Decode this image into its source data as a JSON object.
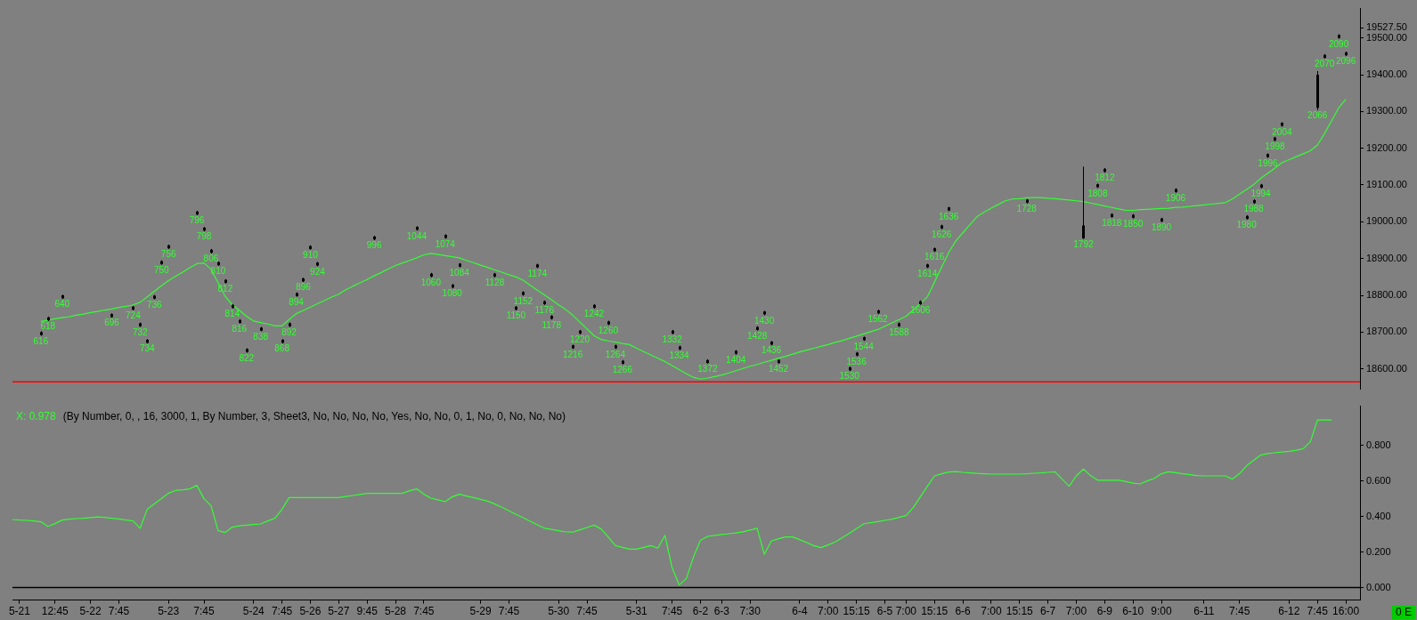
{
  "chart_data": [
    {
      "type": "candlestick",
      "ylim": [
        18545,
        19580
      ],
      "grid": false,
      "legend": false,
      "tick_labels": "y",
      "categories": [
        null,
        null,
        null,
        null,
        null,
        null,
        null,
        null,
        null,
        null,
        null,
        null,
        null,
        null,
        null,
        null,
        null,
        null,
        null,
        null,
        null,
        null,
        null,
        null,
        null,
        null,
        null,
        null,
        null,
        null,
        null,
        null,
        null,
        null,
        null,
        null,
        null,
        null,
        null,
        null,
        null,
        null,
        null,
        null,
        null,
        null,
        null,
        null,
        null,
        null,
        null,
        null,
        null,
        null,
        null,
        null,
        null,
        null,
        null,
        null,
        null,
        null,
        null,
        null,
        null,
        null,
        null,
        null,
        null,
        null,
        null,
        null,
        null,
        null,
        null,
        null,
        null,
        null,
        null,
        null,
        null,
        null,
        null,
        null,
        null,
        null,
        null,
        null,
        null,
        null,
        null,
        null,
        null,
        null,
        null,
        null,
        null,
        null,
        null,
        null,
        null,
        null,
        null,
        null,
        null,
        null,
        null,
        null,
        null,
        null,
        null,
        null,
        null,
        null,
        null,
        null,
        null,
        null,
        null,
        null,
        null,
        null,
        null,
        null,
        null,
        null,
        null,
        null,
        null,
        null,
        null,
        null,
        null,
        null,
        null,
        null,
        null,
        null,
        null,
        null,
        null,
        null,
        null,
        null,
        null,
        null,
        null,
        null,
        null,
        null,
        null,
        null,
        null,
        null,
        null,
        null,
        null,
        null,
        null,
        null,
        null,
        null,
        null,
        null,
        null,
        null,
        null,
        null,
        null,
        null,
        null,
        null,
        null,
        null,
        null,
        null,
        null,
        null,
        null,
        null,
        null,
        null,
        null,
        null,
        null,
        null,
        null,
        null,
        null,
        null,
        null
      ],
      "yticks": [
        {
          "value": 18600,
          "label": "18600.00"
        },
        {
          "value": 18700,
          "label": "18700.00"
        },
        {
          "value": 18800,
          "label": "18800.00"
        },
        {
          "value": 18900,
          "label": "18900.00"
        },
        {
          "value": 19000,
          "label": "19000.00"
        },
        {
          "value": 19100,
          "label": "19100.00"
        },
        {
          "value": 19200,
          "label": "19200.00"
        },
        {
          "value": 19300,
          "label": "19300.00"
        },
        {
          "value": 19400,
          "label": "19400.00"
        },
        {
          "value": 19500,
          "label": "19500.00"
        },
        {
          "value": 19527.5,
          "label": "19527.50"
        }
      ],
      "ref_lines": [
        {
          "axis": "y",
          "value": 18565,
          "color": "#ff0000"
        }
      ],
      "series": [
        {
          "color": "#000000",
          "ohlc": [
            null,
            null,
            null,
            null,
            [
              18692,
              18702,
              18690,
              18700
            ],
            [
              18732,
              18742,
              18730,
              18740
            ],
            null,
            [
              18792,
              18802,
              18790,
              18800
            ],
            null,
            null,
            null,
            null,
            null,
            null,
            [
              18741,
              18751,
              18739,
              18749
            ],
            null,
            null,
            [
              18761,
              18771,
              18759,
              18769
            ],
            [
              18716,
              18726,
              18714,
              18724
            ],
            [
              18671,
              18681,
              18669,
              18679
            ],
            [
              18791,
              18801,
              18789,
              18799
            ],
            [
              18885,
              18895,
              18883,
              18893
            ],
            [
              18928,
              18938,
              18926,
              18936
            ],
            null,
            null,
            null,
            [
              19020,
              19030,
              19018,
              19028
            ],
            [
              18976,
              18986,
              18974,
              18984
            ],
            [
              18916,
              18926,
              18914,
              18924
            ],
            [
              18882,
              18892,
              18880,
              18890
            ],
            [
              18834,
              18844,
              18832,
              18842
            ],
            [
              18766,
              18776,
              18764,
              18774
            ],
            [
              18725,
              18735,
              18723,
              18733
            ],
            [
              18646,
              18656,
              18644,
              18654
            ],
            null,
            [
              18704,
              18714,
              18702,
              18712
            ],
            null,
            null,
            [
              18671,
              18681,
              18669,
              18679
            ],
            [
              18716,
              18726,
              18714,
              18724
            ],
            [
              18798,
              18808,
              18796,
              18806
            ],
            [
              18838,
              18848,
              18836,
              18846
            ],
            [
              18926,
              18936,
              18924,
              18934
            ],
            [
              18881,
              18891,
              18879,
              18889
            ],
            null,
            null,
            null,
            null,
            null,
            null,
            null,
            [
              18952,
              18962,
              18950,
              18960
            ],
            null,
            null,
            null,
            null,
            null,
            [
              18978,
              18988,
              18976,
              18986
            ],
            null,
            [
              18851,
              18861,
              18849,
              18859
            ],
            null,
            [
              18956,
              18966,
              18954,
              18964
            ],
            [
              18821,
              18831,
              18819,
              18829
            ],
            [
              18878,
              18888,
              18876,
              18886
            ],
            null,
            null,
            null,
            null,
            [
              18851,
              18861,
              18849,
              18859
            ],
            null,
            null,
            [
              18761,
              18771,
              18759,
              18769
            ],
            [
              18801,
              18811,
              18799,
              18809
            ],
            null,
            [
              18876,
              18886,
              18874,
              18884
            ],
            [
              18776,
              18786,
              18774,
              18784
            ],
            [
              18736,
              18746,
              18734,
              18744
            ],
            null,
            null,
            [
              18656,
              18666,
              18654,
              18664
            ],
            [
              18696,
              18706,
              18694,
              18704
            ],
            null,
            [
              18766,
              18776,
              18764,
              18774
            ],
            null,
            [
              18721,
              18731,
              18719,
              18729
            ],
            [
              18656,
              18666,
              18654,
              18664
            ],
            [
              18614,
              18624,
              18612,
              18622
            ],
            null,
            null,
            null,
            null,
            null,
            null,
            [
              18696,
              18706,
              18694,
              18704
            ],
            [
              18653,
              18663,
              18651,
              18661
            ],
            null,
            null,
            null,
            [
              18616,
              18626,
              18614,
              18624
            ],
            null,
            null,
            null,
            [
              18641,
              18651,
              18639,
              18649
            ],
            null,
            null,
            [
              18706,
              18716,
              18704,
              18714
            ],
            [
              18748,
              18758,
              18746,
              18756
            ],
            [
              18666,
              18676,
              18664,
              18674
            ],
            [
              18616,
              18626,
              18614,
              18624
            ],
            null,
            null,
            null,
            null,
            null,
            null,
            null,
            null,
            null,
            [
              18596,
              18606,
              18594,
              18604
            ],
            [
              18636,
              18646,
              18634,
              18644
            ],
            [
              18678,
              18688,
              18676,
              18686
            ],
            null,
            [
              18751,
              18761,
              18749,
              18759
            ],
            null,
            null,
            [
              18716,
              18726,
              18714,
              18724
            ],
            null,
            null,
            [
              18776,
              18786,
              18774,
              18784
            ],
            [
              18876,
              18886,
              18874,
              18884
            ],
            [
              18920,
              18930,
              18918,
              18928
            ],
            [
              18982,
              18992,
              18980,
              18990
            ],
            [
              19031,
              19041,
              19029,
              19039
            ],
            null,
            null,
            null,
            null,
            null,
            null,
            null,
            null,
            null,
            null,
            [
              19052,
              19062,
              19050,
              19060
            ],
            null,
            null,
            null,
            null,
            null,
            null,
            null,
            [
              18955,
              19150,
              18953,
              18990
            ],
            null,
            [
              19094,
              19104,
              19092,
              19102
            ],
            [
              19136,
              19146,
              19134,
              19144
            ],
            [
              19013,
              19023,
              19011,
              19021
            ],
            null,
            null,
            [
              19011,
              19021,
              19009,
              19019
            ],
            null,
            null,
            null,
            [
              19001,
              19011,
              18999,
              19009
            ],
            null,
            [
              19081,
              19091,
              19079,
              19089
            ],
            null,
            null,
            null,
            null,
            null,
            null,
            null,
            null,
            null,
            [
              19008,
              19018,
              19006,
              19016
            ],
            [
              19051,
              19061,
              19049,
              19059
            ],
            [
              19093,
              19103,
              19091,
              19101
            ],
            [
              19176,
              19186,
              19174,
              19184
            ],
            [
              19221,
              19231,
              19219,
              19229
            ],
            [
              19261,
              19271,
              19259,
              19269
            ],
            null,
            null,
            null,
            null,
            [
              19310,
              19410,
              19304,
              19400
            ],
            [
              19446,
              19456,
              19444,
              19454
            ],
            null,
            [
              19500,
              19510,
              19498,
              19508
            ],
            [
              19453,
              19463,
              19451,
              19461
            ],
            null,
            null
          ],
          "value_labels": [
            null,
            null,
            null,
            null,
            "616",
            "618",
            null,
            "640",
            null,
            null,
            null,
            null,
            null,
            null,
            "696",
            null,
            null,
            "724",
            "732",
            "734",
            "736",
            "750",
            "756",
            null,
            null,
            null,
            "796",
            "798",
            "806",
            "810",
            "812",
            "814",
            "816",
            "822",
            null,
            "838",
            null,
            null,
            "868",
            "892",
            "894",
            "896",
            "910",
            "924",
            null,
            null,
            null,
            null,
            null,
            null,
            null,
            "996",
            null,
            null,
            null,
            null,
            null,
            "1044",
            null,
            "1060",
            null,
            "1074",
            "1080",
            "1084",
            null,
            null,
            null,
            null,
            "1128",
            null,
            null,
            "1150",
            "1152",
            null,
            "1174",
            "1176",
            "1178",
            null,
            null,
            "1216",
            "1220",
            null,
            "1242",
            null,
            "1260",
            "1264",
            "1266",
            null,
            null,
            null,
            null,
            null,
            null,
            "1332",
            "1334",
            null,
            null,
            null,
            "1372",
            null,
            null,
            null,
            "1404",
            null,
            null,
            "1428",
            "1430",
            "1436",
            "1452",
            null,
            null,
            null,
            null,
            null,
            null,
            null,
            null,
            null,
            "1530",
            "1536",
            "1544",
            null,
            "1562",
            null,
            null,
            "1588",
            null,
            null,
            "1606",
            "1614",
            "1616",
            "1626",
            "1636",
            null,
            null,
            null,
            null,
            null,
            null,
            null,
            null,
            null,
            null,
            "1728",
            null,
            null,
            null,
            null,
            null,
            null,
            null,
            "1792",
            null,
            "1808",
            "1812",
            "1818",
            null,
            null,
            "1850",
            null,
            null,
            null,
            "1890",
            null,
            "1906",
            null,
            null,
            null,
            null,
            null,
            null,
            null,
            null,
            null,
            "1980",
            "1988",
            "1994",
            "1996",
            "1998",
            "2004",
            null,
            null,
            null,
            null,
            "2066",
            "2070",
            null,
            "2090",
            "2096",
            null,
            null
          ]
        },
        {
          "type": "line",
          "color": "#33ff33",
          "values": [
            null,
            null,
            null,
            null,
            18729,
            18732,
            18736,
            18739,
            18742,
            18746,
            18749,
            18753,
            18756,
            18760,
            18763,
            18767,
            18770,
            18774,
            18781,
            18796,
            18811,
            18826,
            18840,
            18852,
            18863,
            18875,
            18886,
            18888,
            18871,
            18834,
            18797,
            18774,
            18759,
            18743,
            18730,
            18726,
            18722,
            18717,
            18717,
            18734,
            18750,
            18759,
            18768,
            18777,
            18786,
            18795,
            18803,
            18815,
            18825,
            18834,
            18843,
            18853,
            18862,
            18872,
            18881,
            18888,
            18895,
            18902,
            18910,
            18914,
            18911,
            18908,
            18905,
            18902,
            18895,
            18889,
            18882,
            18876,
            18869,
            18863,
            18856,
            18850,
            18841,
            18827,
            18814,
            18801,
            18788,
            18774,
            18761,
            18746,
            18727,
            18709,
            18690,
            18680,
            18676,
            18673,
            18669,
            18666,
            18656,
            18647,
            18638,
            18629,
            18620,
            18609,
            18598,
            18587,
            18577,
            18572,
            18575,
            18579,
            18583,
            18589,
            18595,
            18601,
            18607,
            18612,
            18618,
            18623,
            18629,
            18634,
            18640,
            18646,
            18651,
            18656,
            18661,
            18666,
            18672,
            18677,
            18683,
            18689,
            18695,
            18701,
            18707,
            18716,
            18725,
            18734,
            18743,
            18760,
            18778,
            18796,
            18836,
            18876,
            18916,
            18948,
            18970,
            18992,
            19014,
            19026,
            19037,
            19047,
            19057,
            19062,
            19063,
            19065,
            19066,
            19066,
            19064,
            19063,
            19061,
            19059,
            19057,
            19055,
            19051,
            19047,
            19043,
            19039,
            19035,
            19031,
            19031,
            19033,
            19034,
            19035,
            19036,
            19037,
            19039,
            19040,
            19042,
            19044,
            19046,
            19048,
            19050,
            19052,
            19062,
            19075,
            19088,
            19101,
            19118,
            19132,
            19146,
            19161,
            19169,
            19177,
            19185,
            19193,
            19209,
            19240,
            19275,
            19310,
            19333,
            null,
            null
          ]
        }
      ]
    },
    {
      "type": "line",
      "ylim": [
        -0.07,
        1.02
      ],
      "grid": false,
      "legend": false,
      "marker": "none",
      "categories": [
        null,
        "5-21",
        null,
        null,
        null,
        null,
        "12:45",
        null,
        null,
        null,
        null,
        "5-22",
        null,
        null,
        null,
        "7:45",
        null,
        null,
        null,
        null,
        null,
        null,
        "5-23",
        null,
        null,
        null,
        null,
        "7:45",
        null,
        null,
        null,
        null,
        null,
        null,
        "5-24",
        null,
        null,
        null,
        "7:45",
        null,
        null,
        null,
        "5-26",
        null,
        null,
        null,
        "5-27",
        null,
        null,
        null,
        "9:45",
        null,
        null,
        null,
        "5-28",
        null,
        null,
        null,
        "7:45",
        null,
        null,
        null,
        null,
        null,
        null,
        null,
        "5-29",
        null,
        null,
        null,
        "7:45",
        null,
        null,
        null,
        null,
        null,
        null,
        "5-30",
        null,
        null,
        null,
        "7:45",
        null,
        null,
        null,
        null,
        null,
        null,
        "5-31",
        null,
        null,
        null,
        null,
        "7:45",
        null,
        null,
        null,
        "6-2",
        null,
        null,
        "6-3",
        null,
        null,
        null,
        "7:30",
        null,
        null,
        null,
        null,
        null,
        null,
        "6-4",
        null,
        null,
        null,
        "7:00",
        null,
        null,
        null,
        "15:15",
        null,
        null,
        null,
        "6-5",
        null,
        null,
        "7:00",
        null,
        null,
        null,
        "15:15",
        null,
        null,
        null,
        "6-6",
        null,
        null,
        null,
        "7:00",
        null,
        null,
        null,
        "15:15",
        null,
        null,
        null,
        "6-7",
        null,
        null,
        null,
        "7:00",
        null,
        null,
        null,
        "6-9",
        null,
        null,
        null,
        "6-10",
        null,
        null,
        null,
        "9:00",
        null,
        null,
        null,
        null,
        null,
        "6-11",
        null,
        null,
        null,
        null,
        "7:45",
        null,
        null,
        null,
        null,
        null,
        null,
        "6-12",
        null,
        null,
        null,
        "7:45",
        null,
        null,
        null,
        "16:00",
        null,
        null
      ],
      "yticks": [
        {
          "value": 0,
          "label": "0.000"
        },
        {
          "value": 0.2,
          "label": "0.200"
        },
        {
          "value": 0.4,
          "label": "0.400"
        },
        {
          "value": 0.6,
          "label": "0.600"
        },
        {
          "value": 0.8,
          "label": "0.800"
        }
      ],
      "ref_lines": [
        {
          "axis": "y",
          "value": 0,
          "color": "#000000"
        }
      ],
      "series": [
        {
          "color": "#33ff33",
          "values": [
            0.383,
            0.38,
            0.378,
            0.375,
            0.37,
            0.344,
            0.36,
            0.38,
            0.385,
            0.388,
            0.39,
            0.394,
            0.397,
            0.395,
            0.39,
            0.386,
            0.38,
            0.375,
            0.334,
            0.44,
            0.47,
            0.5,
            0.53,
            0.547,
            0.55,
            0.555,
            0.575,
            0.5,
            0.46,
            0.32,
            0.31,
            0.34,
            0.347,
            0.351,
            0.355,
            0.358,
            0.375,
            0.39,
            0.44,
            0.506,
            0.506,
            0.506,
            0.506,
            0.506,
            0.506,
            0.506,
            0.506,
            0.512,
            0.518,
            0.524,
            0.53,
            0.53,
            0.53,
            0.53,
            0.53,
            0.53,
            0.545,
            0.555,
            0.525,
            0.503,
            0.494,
            0.483,
            0.51,
            0.525,
            0.515,
            0.506,
            0.496,
            0.486,
            0.47,
            0.452,
            0.432,
            0.412,
            0.393,
            0.373,
            0.353,
            0.334,
            0.327,
            0.32,
            0.313,
            0.312,
            0.325,
            0.338,
            0.351,
            0.33,
            0.285,
            0.236,
            0.226,
            0.216,
            0.216,
            0.226,
            0.236,
            0.222,
            0.294,
            0.113,
            0.015,
            0.05,
            0.17,
            0.265,
            0.288,
            0.294,
            0.299,
            0.303,
            0.307,
            0.314,
            0.324,
            0.334,
            0.187,
            0.262,
            0.275,
            0.285,
            0.285,
            0.27,
            0.253,
            0.235,
            0.225,
            0.24,
            0.257,
            0.28,
            0.306,
            0.332,
            0.358,
            0.365,
            0.371,
            0.378,
            0.385,
            0.395,
            0.405,
            0.45,
            0.51,
            0.57,
            0.628,
            0.64,
            0.65,
            0.652,
            0.648,
            0.645,
            0.642,
            0.64,
            0.638,
            0.638,
            0.638,
            0.638,
            0.638,
            0.64,
            0.643,
            0.645,
            0.648,
            0.651,
            0.61,
            0.57,
            0.628,
            0.667,
            0.63,
            0.604,
            0.604,
            0.604,
            0.604,
            0.596,
            0.587,
            0.583,
            0.6,
            0.614,
            0.64,
            0.651,
            0.646,
            0.64,
            0.635,
            0.63,
            0.628,
            0.628,
            0.628,
            0.628,
            0.61,
            0.64,
            0.685,
            0.715,
            0.745,
            0.754,
            0.758,
            0.762,
            0.766,
            0.772,
            0.781,
            0.82,
            0.942,
            0.942,
            0.942,
            null,
            null,
            null,
            null
          ]
        }
      ],
      "annotations": [
        "X: 0.978",
        "(By Number, 0, , 16, 3000, 1, By Number, 3, Sheet3, No, No, No, No, Yes, No, No, 0, 1, No, 0, No, No, No)",
        "0 E"
      ]
    }
  ]
}
